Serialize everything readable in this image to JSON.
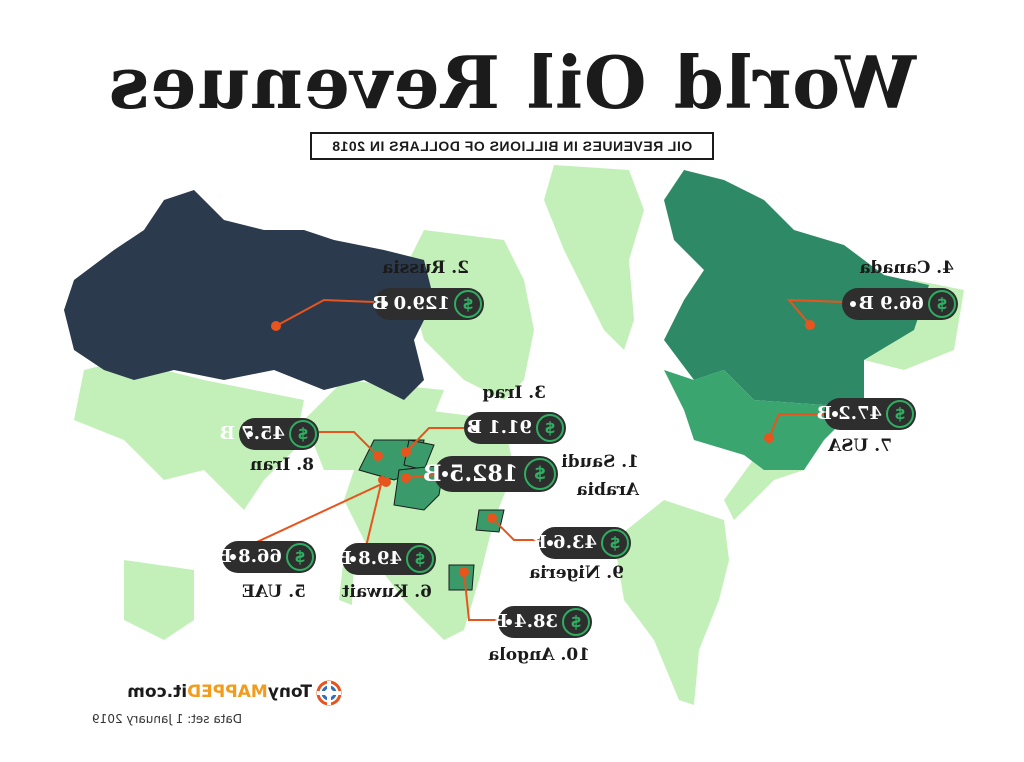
{
  "title": "World Oil Revenues",
  "subtitle": "OIL REVENUES IN BILLIONS OF DOLLARS IN 2018",
  "currency_symbol": "$",
  "colors": {
    "land": "#c2f0b8",
    "russia": "#2b3a4d",
    "canada": "#2e8a66",
    "usa": "#3aa56f",
    "highlight": "#3a9a6a",
    "marker": "#e8541e",
    "pill": "#2e2e2e",
    "coin_ring": "#2fae62"
  },
  "countries": [
    {
      "rank_label": "1. Saudi",
      "rank_label_2": "Arabia",
      "value": "182.5 B"
    },
    {
      "rank_label": "2. Russia",
      "value": "129.0 B"
    },
    {
      "rank_label": "3. Iraq",
      "value": "91.1 B"
    },
    {
      "rank_label": "4. Canada",
      "value": "66.9 B"
    },
    {
      "rank_label": "5. UAE",
      "value": "66.8 B"
    },
    {
      "rank_label": "6. Kuwait",
      "value": "49.8 B"
    },
    {
      "rank_label": "7. USA",
      "value": "47.2 B"
    },
    {
      "rank_label": "8. Iran",
      "value": "45.7 B"
    },
    {
      "rank_label": "9. Nigeria",
      "value": "43.6 B"
    },
    {
      "rank_label": "10. Angola",
      "value": "38.4 B"
    }
  ],
  "brand": {
    "prefix": "Tony",
    "mapped": "MAPPED",
    "suffix": "it.com"
  },
  "dataset": "Data set: 1 January 2019"
}
